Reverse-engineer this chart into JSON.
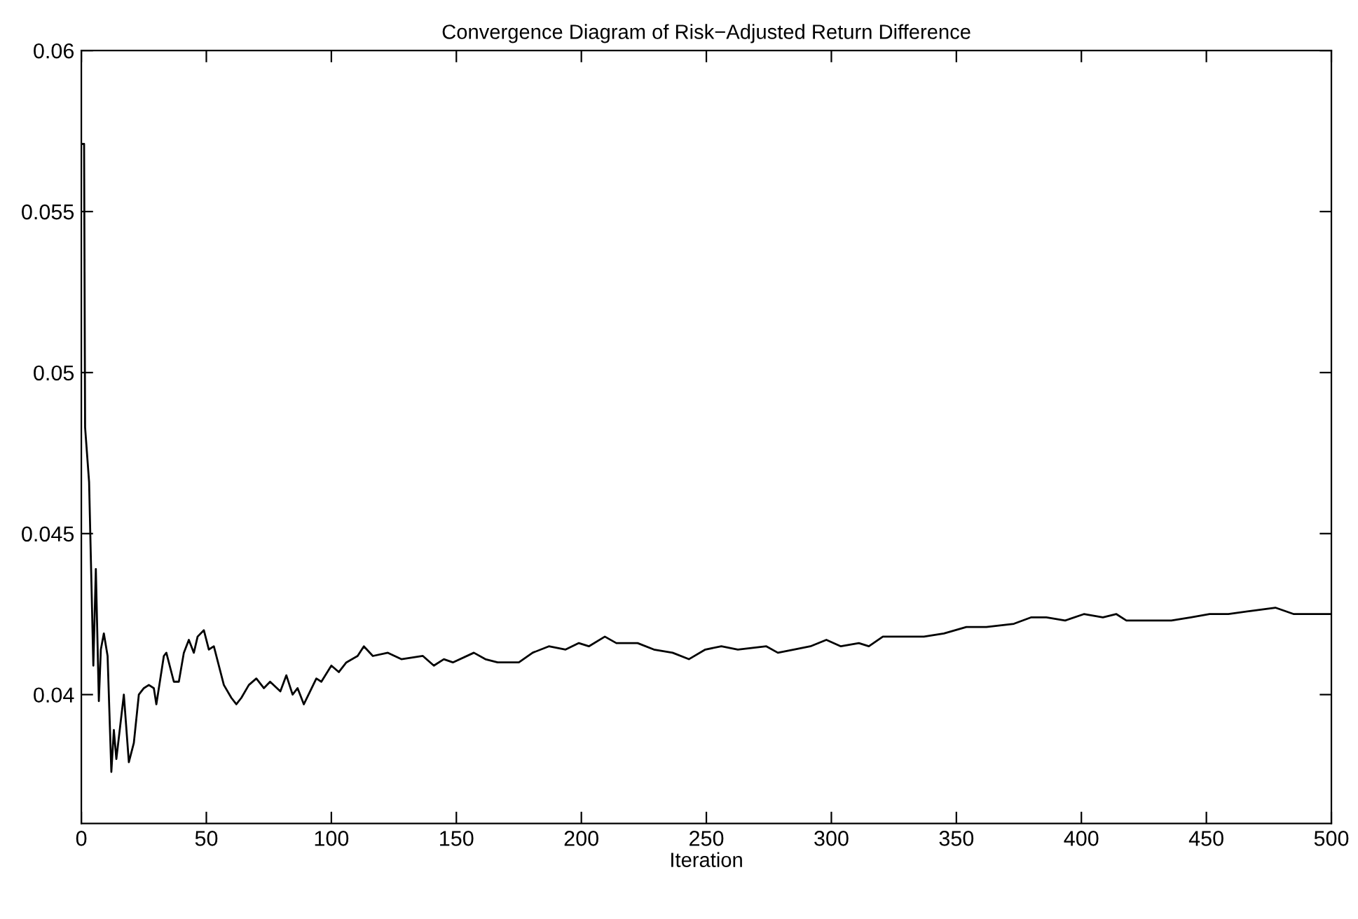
{
  "chart_data": {
    "type": "line",
    "title": "Convergence Diagram of Risk−Adjusted Return Difference",
    "xlabel": "Iteration",
    "series": [
      {
        "color": "#000000",
        "x": [
          0,
          1.1,
          1.5,
          3.1,
          4.8,
          5.8,
          7,
          7.8,
          9,
          10.5,
          12,
          13,
          14,
          17,
          19,
          21,
          23,
          25,
          27,
          29,
          30,
          33,
          34,
          37,
          39,
          41,
          43,
          45,
          46.5,
          49,
          51,
          53,
          57,
          60,
          62,
          64,
          67,
          70,
          73,
          75.5,
          79.6,
          82,
          84.5,
          86.5,
          89,
          94,
          96,
          100,
          103,
          106,
          110.5,
          113,
          116.6,
          122.6,
          128,
          136.6,
          141,
          145,
          148.6,
          157,
          161.6,
          166.5,
          175,
          180.5,
          187,
          193.7,
          199,
          203,
          209.4,
          214,
          222.5,
          229,
          236.5,
          243,
          249.6,
          256,
          262.6,
          274,
          278.6,
          285,
          291.6,
          298,
          303.8,
          311,
          315,
          320.6,
          331.8,
          337,
          345,
          354,
          362,
          373,
          380,
          386,
          393.5,
          401,
          408.6,
          414,
          418,
          427,
          436,
          443.8,
          451.3,
          458.8,
          468,
          477.6,
          485,
          492.5,
          500
        ],
        "values": [
          0.0571,
          0.0571,
          0.0483,
          0.0466,
          0.0409,
          0.0439,
          0.0398,
          0.0414,
          0.0419,
          0.0412,
          0.0376,
          0.0389,
          0.038,
          0.04,
          0.0379,
          0.0385,
          0.04,
          0.0402,
          0.0403,
          0.0402,
          0.0397,
          0.0412,
          0.0413,
          0.0404,
          0.0404,
          0.0413,
          0.0417,
          0.0413,
          0.0418,
          0.042,
          0.0414,
          0.0415,
          0.0403,
          0.0399,
          0.0397,
          0.0399,
          0.0403,
          0.0405,
          0.0402,
          0.0404,
          0.0401,
          0.0406,
          0.04,
          0.0402,
          0.0397,
          0.0405,
          0.0404,
          0.0409,
          0.0407,
          0.041,
          0.0412,
          0.0415,
          0.0412,
          0.0413,
          0.0411,
          0.0412,
          0.0409,
          0.0411,
          0.041,
          0.0413,
          0.0411,
          0.041,
          0.041,
          0.0413,
          0.0415,
          0.0414,
          0.0416,
          0.0415,
          0.0418,
          0.0416,
          0.0416,
          0.0414,
          0.0413,
          0.0411,
          0.0414,
          0.0415,
          0.0414,
          0.0415,
          0.0413,
          0.0414,
          0.0415,
          0.0417,
          0.0415,
          0.0416,
          0.0415,
          0.0418,
          0.0418,
          0.0418,
          0.0419,
          0.0421,
          0.0421,
          0.0422,
          0.0424,
          0.0424,
          0.0423,
          0.0425,
          0.0424,
          0.0425,
          0.0423,
          0.0423,
          0.0423,
          0.0424,
          0.0425,
          0.0425,
          0.0426,
          0.0427,
          0.0425,
          0.0425,
          0.0425
        ]
      }
    ],
    "xlim": [
      0,
      500
    ],
    "xticks": [
      0,
      50,
      100,
      150,
      200,
      250,
      300,
      350,
      400,
      450,
      500
    ],
    "ylim": [
      0.036,
      0.06
    ],
    "yticks": [
      0.04,
      0.045,
      0.05,
      0.055,
      0.06
    ],
    "grid": false,
    "legend": false,
    "marker": "none",
    "line_style": "solid"
  }
}
